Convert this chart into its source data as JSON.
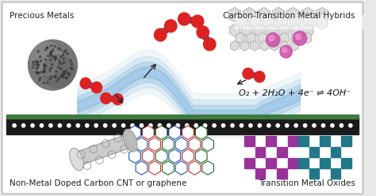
{
  "bg_color": "#e8e8e8",
  "border_color": "#bbbbbb",
  "labels": {
    "precious_metals": "Precious Metals",
    "carbon_transition": "Carbon-Transition Metal Hybrids",
    "non_metal": "Non-Metal Doped Carbon CNT or graphene",
    "transition_oxide": "Transition Metal Oxides",
    "equation": "O₂ + 2H₂O + 4e⁻ ⇌ 4OH⁻"
  },
  "electrode_color": "#1a1a1a",
  "electrode_green": "#3d7a3d",
  "molecule_red": "#dd2222",
  "molecule_blue": "#1144bb",
  "wave_color": "#88bbdd",
  "purple_color": "#993399",
  "teal_color": "#227788",
  "sphere_color": "#888888",
  "graphene_color": "#aaaaaa",
  "cnt_color": "#999999",
  "hex_blue": "#2255aa",
  "hex_red": "#cc3333",
  "hex_green": "#226622"
}
